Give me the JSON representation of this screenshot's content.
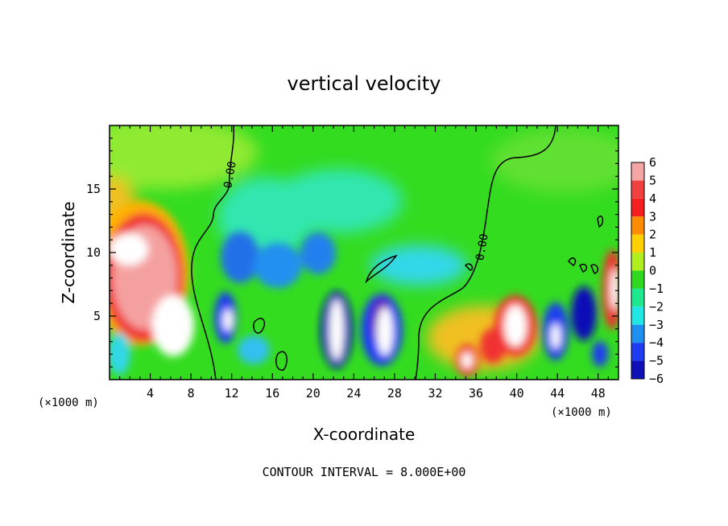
{
  "chart_data": {
    "type": "heatmap",
    "title": "vertical velocity",
    "xlabel": "X-coordinate",
    "ylabel": "Z-coordinate",
    "x_unit": "(×1000 m)",
    "z_unit": "(×1000 m)",
    "xlim": [
      0,
      50
    ],
    "ylim": [
      0,
      20
    ],
    "x_ticks": [
      4,
      8,
      12,
      16,
      20,
      24,
      28,
      32,
      36,
      40,
      44,
      48
    ],
    "y_ticks": [
      5,
      10,
      15
    ],
    "colorbar": {
      "levels": [
        6,
        5,
        4,
        3,
        2,
        1,
        0,
        -1,
        -2,
        -3,
        -4,
        -5,
        -6
      ],
      "colors": [
        "#f7a6a6",
        "#f04040",
        "#f51f1f",
        "#ff8c00",
        "#ffd000",
        "#b0ee20",
        "#30d820",
        "#20e890",
        "#20e6e6",
        "#2090f0",
        "#1e3cf0",
        "#1010b8",
        "#7000a8"
      ]
    },
    "contour_labels": [
      "0.00",
      "0.00"
    ],
    "footer": "CONTOUR INTERVAL = 8.000E+00"
  }
}
